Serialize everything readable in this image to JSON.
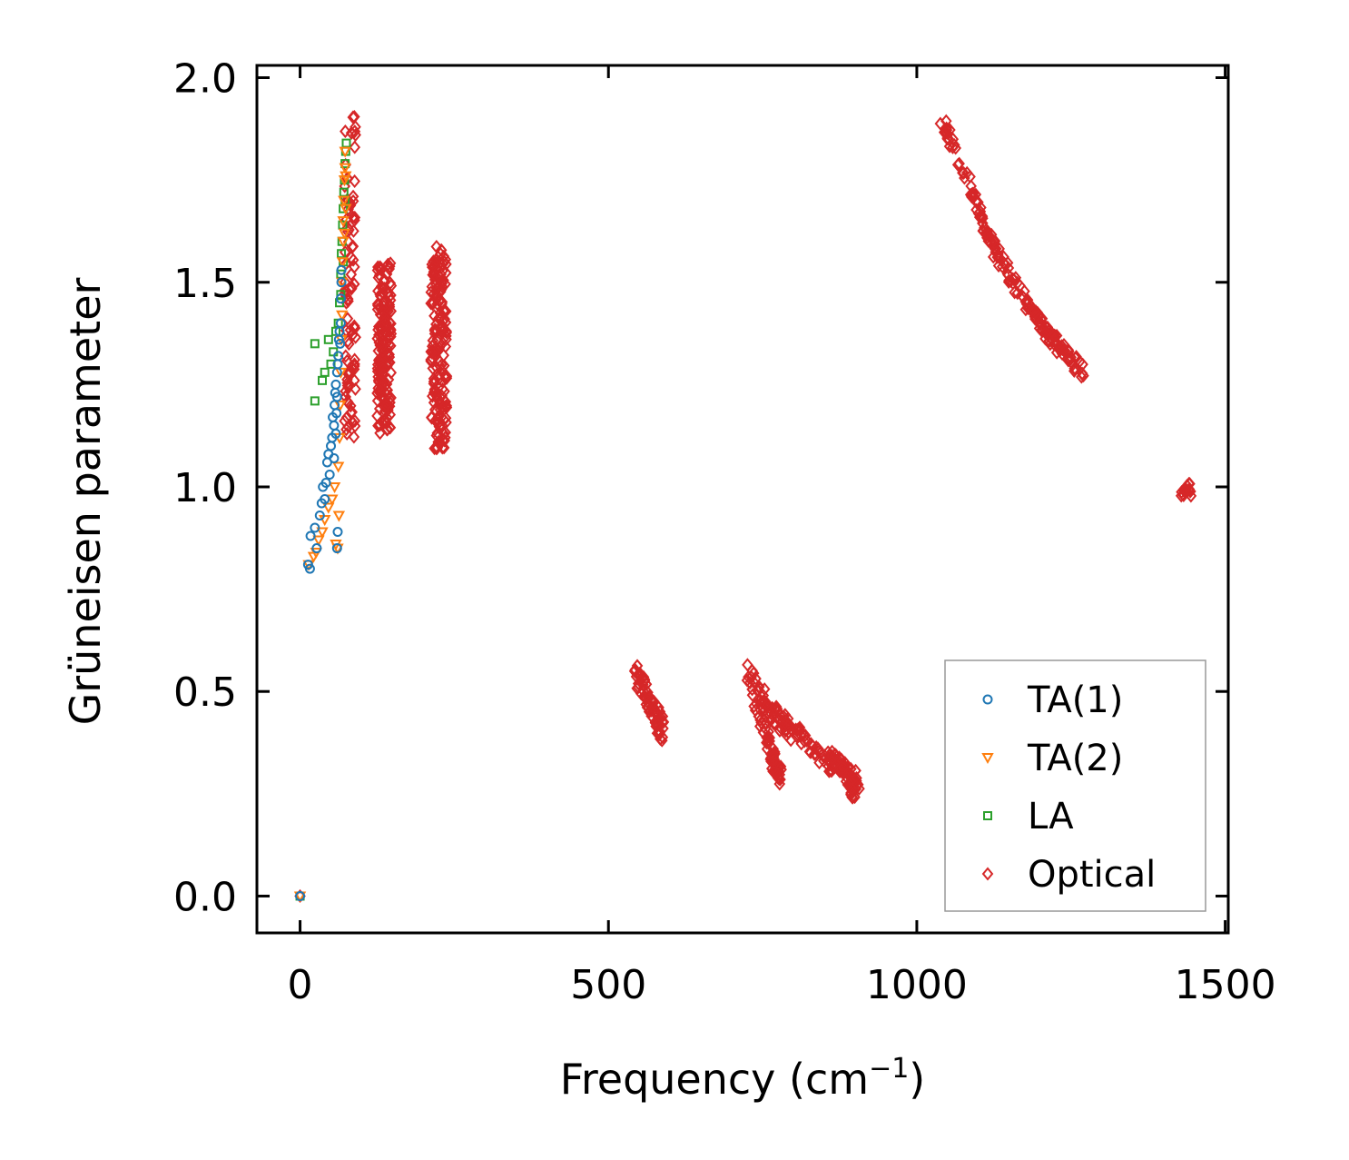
{
  "chart_data": {
    "type": "scatter",
    "title": "",
    "xlabel": "Frequency (cm",
    "xlabel_sup": "−1",
    "xlabel_close": ")",
    "ylabel": "Grüneisen parameter",
    "xlim": [
      -70,
      1505
    ],
    "ylim": [
      -0.09,
      2.03
    ],
    "xticks": [
      0,
      500,
      1000,
      1500
    ],
    "xtick_labels": [
      "0",
      "500",
      "1000",
      "1500"
    ],
    "yticks": [
      0.0,
      0.5,
      1.0,
      1.5,
      2.0
    ],
    "ytick_labels": [
      "0.0",
      "0.5",
      "1.0",
      "1.5",
      "2.0"
    ],
    "grid": false,
    "legend_position": "lower-right",
    "series": [
      {
        "name": "TA(1)",
        "marker": "circle",
        "color": "#1f77b4",
        "points": [
          [
            0,
            0.0
          ],
          [
            13,
            0.81
          ],
          [
            16,
            0.8
          ],
          [
            17,
            0.88
          ],
          [
            24,
            0.9
          ],
          [
            27,
            0.85
          ],
          [
            32,
            0.93
          ],
          [
            35,
            0.96
          ],
          [
            37,
            1.0
          ],
          [
            40,
            0.97
          ],
          [
            42,
            1.01
          ],
          [
            44,
            1.06
          ],
          [
            46,
            1.08
          ],
          [
            48,
            1.03
          ],
          [
            50,
            1.1
          ],
          [
            52,
            1.12
          ],
          [
            53,
            1.17
          ],
          [
            55,
            1.15
          ],
          [
            56,
            1.2
          ],
          [
            57,
            1.23
          ],
          [
            58,
            1.25
          ],
          [
            59,
            1.18
          ],
          [
            60,
            1.22
          ],
          [
            60,
            1.28
          ],
          [
            61,
            1.3
          ],
          [
            62,
            1.32
          ],
          [
            63,
            1.36
          ],
          [
            64,
            1.38
          ],
          [
            65,
            1.35
          ],
          [
            66,
            1.4
          ],
          [
            66,
            1.46
          ],
          [
            67,
            1.5
          ],
          [
            67,
            1.53
          ],
          [
            61,
            0.89
          ],
          [
            60,
            0.85
          ],
          [
            55,
            1.07
          ],
          [
            58,
            1.13
          ]
        ]
      },
      {
        "name": "TA(2)",
        "marker": "triangle-down",
        "color": "#ff7f0e",
        "points": [
          [
            0,
            0.0
          ],
          [
            14,
            0.81
          ],
          [
            22,
            0.83
          ],
          [
            26,
            0.84
          ],
          [
            30,
            0.87
          ],
          [
            36,
            0.89
          ],
          [
            40,
            0.92
          ],
          [
            46,
            0.95
          ],
          [
            52,
            0.97
          ],
          [
            56,
            1.0
          ],
          [
            58,
            0.86
          ],
          [
            61,
            0.85
          ],
          [
            62,
            1.05
          ],
          [
            63,
            0.93
          ],
          [
            64,
            1.12
          ],
          [
            65,
            1.2
          ],
          [
            66,
            1.28
          ],
          [
            67,
            1.36
          ],
          [
            68,
            1.42
          ],
          [
            68,
            1.5
          ],
          [
            69,
            1.55
          ],
          [
            70,
            1.6
          ],
          [
            70,
            1.65
          ],
          [
            71,
            1.7
          ],
          [
            72,
            1.75
          ],
          [
            73,
            1.78
          ],
          [
            73,
            1.82
          ],
          [
            74,
            1.76
          ],
          [
            74,
            1.68
          ],
          [
            72,
            1.62
          ]
        ]
      },
      {
        "name": "LA",
        "marker": "square",
        "color": "#2ca02c",
        "points": [
          [
            0,
            0.0
          ],
          [
            24,
            1.21
          ],
          [
            24,
            1.35
          ],
          [
            36,
            1.26
          ],
          [
            40,
            1.28
          ],
          [
            46,
            1.36
          ],
          [
            50,
            1.3
          ],
          [
            54,
            1.33
          ],
          [
            58,
            1.38
          ],
          [
            62,
            1.4
          ],
          [
            64,
            1.45
          ],
          [
            66,
            1.52
          ],
          [
            67,
            1.57
          ],
          [
            68,
            1.6
          ],
          [
            69,
            1.64
          ],
          [
            70,
            1.68
          ],
          [
            71,
            1.72
          ],
          [
            72,
            1.75
          ],
          [
            73,
            1.79
          ],
          [
            74,
            1.82
          ],
          [
            75,
            1.84
          ],
          [
            73,
            1.7
          ],
          [
            70,
            1.55
          ],
          [
            66,
            1.47
          ]
        ]
      },
      {
        "name": "Optical",
        "marker": "diamond",
        "color": "#d62728",
        "points": [],
        "clusters": [
          {
            "x": [
              72,
              90
            ],
            "y": [
              1.12,
              1.92
            ],
            "n": 90
          },
          {
            "x": [
              125,
              148
            ],
            "y": [
              1.13,
              1.55
            ],
            "n": 170
          },
          {
            "x": [
              212,
              238
            ],
            "y": [
              1.09,
              1.59
            ],
            "n": 170
          },
          {
            "line": [
              [
                1040,
                1.9
              ],
              [
                1080,
                1.76
              ],
              [
                1120,
                1.6
              ],
              [
                1160,
                1.49
              ],
              [
                1200,
                1.4
              ],
              [
                1230,
                1.34
              ],
              [
                1268,
                1.28
              ]
            ],
            "width": 0.035,
            "n": 170
          },
          {
            "line": [
              [
                545,
                0.54
              ],
              [
                560,
                0.49
              ],
              [
                575,
                0.45
              ],
              [
                588,
                0.4
              ]
            ],
            "width": 0.06,
            "n": 70
          },
          {
            "line": [
              [
                725,
                0.55
              ],
              [
                760,
                0.46
              ],
              [
                800,
                0.4
              ],
              [
                840,
                0.35
              ],
              [
                880,
                0.31
              ],
              [
                905,
                0.27
              ]
            ],
            "width": 0.05,
            "n": 140
          },
          {
            "line": [
              [
                735,
                0.48
              ],
              [
                755,
                0.4
              ],
              [
                770,
                0.32
              ],
              [
                780,
                0.29
              ]
            ],
            "width": 0.04,
            "n": 60
          },
          {
            "line": [
              [
                865,
                0.34
              ],
              [
                885,
                0.3
              ],
              [
                898,
                0.24
              ]
            ],
            "width": 0.03,
            "n": 30
          },
          {
            "x": [
              1428,
              1445
            ],
            "y": [
              0.975,
              1.01
            ],
            "n": 14
          }
        ],
        "extra_points": [
          [
            0,
            0.0
          ],
          [
            76,
            1.13
          ],
          [
            76,
            1.17
          ],
          [
            80,
            1.25
          ],
          [
            78,
            1.28
          ],
          [
            73,
            1.5
          ],
          [
            75,
            1.45
          ]
        ]
      }
    ]
  }
}
